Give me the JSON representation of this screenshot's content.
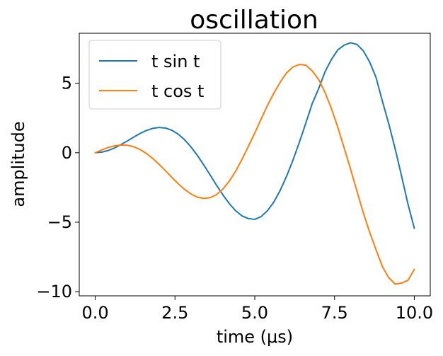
{
  "chart_data": {
    "type": "line",
    "title": "oscillation",
    "xlabel": "time (μs)",
    "ylabel": "amplitude",
    "xlim": [
      -0.5,
      10.5
    ],
    "ylim": [
      -10.3,
      8.6
    ],
    "xticks": [
      0.0,
      2.5,
      5.0,
      7.5,
      10.0
    ],
    "xtick_labels": [
      "0.0",
      "2.5",
      "5.0",
      "7.5",
      "10.0"
    ],
    "yticks": [
      -10,
      -5,
      0,
      5
    ],
    "ytick_labels": [
      "−10",
      "−5",
      "0",
      "5"
    ],
    "grid": false,
    "legend_position": "top-left",
    "x": [
      0.0,
      0.2,
      0.4,
      0.6,
      0.8,
      1.0,
      1.2,
      1.4,
      1.6,
      1.8,
      2.0,
      2.2,
      2.4,
      2.6,
      2.8,
      3.0,
      3.2,
      3.4,
      3.6,
      3.8,
      4.0,
      4.2,
      4.4,
      4.6,
      4.8,
      5.0,
      5.2,
      5.4,
      5.6,
      5.8,
      6.0,
      6.2,
      6.4,
      6.6,
      6.8,
      7.0,
      7.2,
      7.4,
      7.6,
      7.8,
      8.0,
      8.2,
      8.4,
      8.6,
      8.8,
      9.0,
      9.2,
      9.4,
      9.6,
      9.8,
      10.0
    ],
    "series": [
      {
        "name": "t sin t",
        "color": "#1f77b4",
        "values": [
          0.0,
          0.04,
          0.156,
          0.339,
          0.574,
          0.841,
          1.118,
          1.38,
          1.599,
          1.752,
          1.819,
          1.782,
          1.621,
          1.342,
          0.938,
          0.423,
          -0.187,
          -0.871,
          -1.596,
          -2.333,
          -3.027,
          -3.658,
          -4.175,
          -4.545,
          -4.738,
          -4.795,
          -4.597,
          -4.165,
          -3.538,
          -2.695,
          -1.676,
          -0.515,
          0.77,
          2.132,
          3.535,
          4.599,
          5.817,
          6.706,
          7.399,
          7.744,
          7.915,
          7.799,
          7.341,
          6.537,
          5.421,
          3.709,
          2.079,
          0.28,
          -1.671,
          -3.684,
          -5.44
        ]
      },
      {
        "name": "t cos t",
        "color": "#ff7f0e",
        "values": [
          0.0,
          0.196,
          0.368,
          0.495,
          0.557,
          0.54,
          0.435,
          0.238,
          -0.047,
          -0.409,
          -0.832,
          -1.292,
          -1.769,
          -2.232,
          -2.638,
          -2.97,
          -3.195,
          -3.289,
          -3.233,
          -3.016,
          -2.615,
          -2.051,
          -1.33,
          -0.476,
          0.466,
          1.418,
          2.433,
          3.421,
          4.301,
          5.087,
          5.761,
          6.18,
          6.353,
          6.305,
          5.895,
          5.277,
          4.343,
          3.191,
          1.839,
          0.348,
          -1.164,
          -2.756,
          -4.316,
          -5.717,
          -6.978,
          -8.2,
          -9.002,
          -9.454,
          -9.385,
          -9.183,
          -8.391
        ]
      }
    ]
  }
}
